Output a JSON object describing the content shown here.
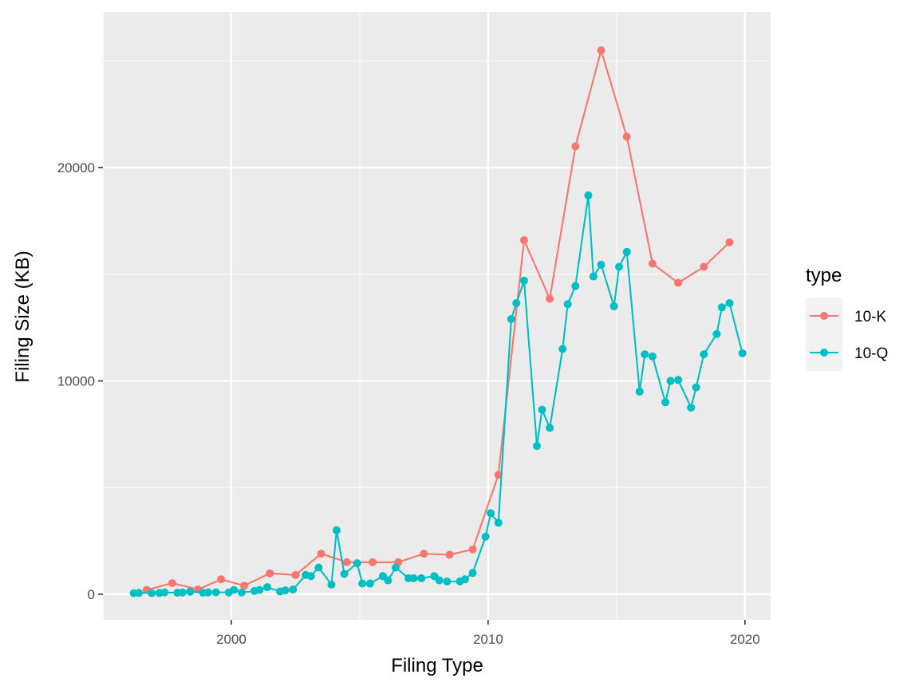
{
  "chart_data": {
    "type": "line",
    "title": "",
    "xlabel": "Filing Type",
    "ylabel": "Filing Size (KB)",
    "xlim": [
      1995.0,
      2021.0
    ],
    "ylim": [
      -1200,
      27300
    ],
    "x_ticks": [
      2000,
      2010,
      2020
    ],
    "y_ticks": [
      0,
      10000,
      20000
    ],
    "x_tick_labels": [
      "2000",
      "2010",
      "2020"
    ],
    "y_tick_labels": [
      "0",
      "10000",
      "20000"
    ],
    "grid": true,
    "legend": {
      "title": "type",
      "position": "right"
    },
    "series": [
      {
        "name": "10-K",
        "color": "#F8766D",
        "x": [
          1996.7,
          1997.7,
          1998.7,
          1999.6,
          2000.5,
          2001.5,
          2002.5,
          2003.5,
          2004.5,
          2005.5,
          2006.5,
          2007.5,
          2008.5,
          2009.4,
          2010.4,
          2011.4,
          2012.4,
          2013.4,
          2014.4,
          2015.4,
          2016.4,
          2017.4,
          2018.4,
          2019.4
        ],
        "y": [
          200,
          520,
          220,
          700,
          400,
          980,
          900,
          1900,
          1500,
          1500,
          1500,
          1900,
          1850,
          2100,
          5600,
          16600,
          13850,
          21000,
          25500,
          21450,
          15500,
          14600,
          15350,
          16500
        ]
      },
      {
        "name": "10-Q",
        "color": "#00BFC4",
        "x": [
          1996.2,
          1996.4,
          1996.9,
          1997.2,
          1997.4,
          1997.9,
          1998.1,
          1998.4,
          1998.9,
          1999.1,
          1999.4,
          1999.9,
          2000.1,
          2000.4,
          2000.9,
          2001.1,
          2001.4,
          2001.9,
          2002.1,
          2002.4,
          2002.9,
          2003.1,
          2003.4,
          2003.9,
          2004.1,
          2004.4,
          2004.9,
          2005.1,
          2005.4,
          2005.9,
          2006.1,
          2006.4,
          2006.9,
          2007.1,
          2007.4,
          2007.9,
          2008.1,
          2008.4,
          2008.9,
          2009.1,
          2009.4,
          2009.9,
          2010.1,
          2010.4,
          2010.9,
          2011.1,
          2011.4,
          2011.9,
          2012.1,
          2012.4,
          2012.9,
          2013.1,
          2013.4,
          2013.9,
          2014.1,
          2014.4,
          2014.9,
          2015.1,
          2015.4,
          2015.9,
          2016.1,
          2016.4,
          2016.9,
          2017.1,
          2017.4,
          2017.9,
          2018.1,
          2018.4,
          2018.9,
          2019.1,
          2019.4,
          2019.9
        ],
        "y": [
          50,
          60,
          50,
          60,
          80,
          70,
          80,
          120,
          70,
          80,
          90,
          80,
          200,
          80,
          150,
          200,
          330,
          130,
          180,
          220,
          900,
          850,
          1250,
          450,
          3000,
          950,
          1450,
          500,
          500,
          850,
          650,
          1250,
          750,
          750,
          750,
          850,
          650,
          600,
          600,
          700,
          1000,
          2700,
          3800,
          3350,
          12900,
          13650,
          14700,
          6950,
          8650,
          7800,
          11500,
          13600,
          14450,
          18700,
          14900,
          15450,
          13500,
          15350,
          16050,
          9500,
          11250,
          11150,
          9000,
          10000,
          10050,
          8750,
          9700,
          11250,
          12200,
          13450,
          13650,
          11300
        ]
      }
    ]
  }
}
